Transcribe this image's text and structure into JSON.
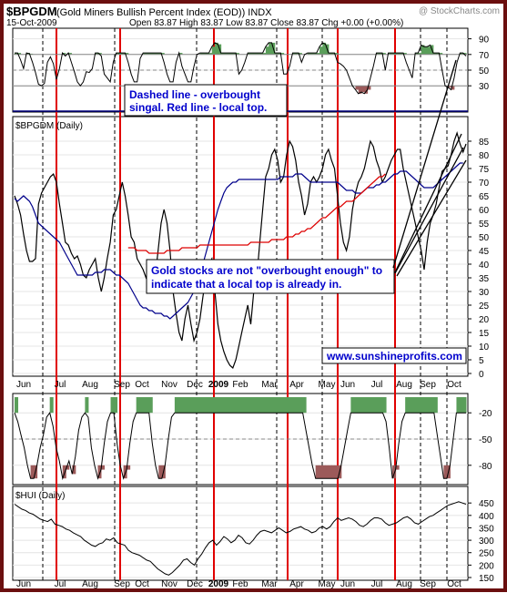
{
  "header": {
    "symbol": "$BPGDM",
    "name": "(Gold Miners Bullish Percent Index (EOD)) INDX",
    "copyright": "@ StockCharts.com",
    "date": "15-Oct-2009",
    "quote": "Open 83.87  High 83.87  Low 83.87  Close 83.87  Chg +0.00 (+0.00%)"
  },
  "annotations": {
    "dashed_line_1": "Dashed line - overbought",
    "dashed_line_2": "singal. Red line - local top.",
    "overbought_1": "Gold stocks are not \"overbought enough\" to",
    "overbought_2": "indicate that a local top is already in.",
    "website": "www.sunshineprofits.com"
  },
  "chart_data": [
    {
      "type": "line",
      "panel": "top-indicator",
      "ylim": [
        0,
        100
      ],
      "y_ticks": [
        "90",
        "70",
        "50",
        "30"
      ],
      "threshold_line": 70,
      "dashed_line": 50,
      "base_line": 30,
      "values": [
        72,
        72,
        63,
        52,
        72,
        71,
        60,
        47,
        32,
        30,
        33,
        60,
        67,
        58,
        38,
        52,
        72,
        68,
        72,
        60,
        48,
        35,
        30,
        35,
        48,
        47,
        52,
        72,
        72,
        68,
        45,
        40,
        35,
        60,
        72,
        72,
        72,
        72,
        60,
        45,
        35,
        35,
        65,
        72,
        72,
        72,
        72,
        72,
        72,
        72,
        60,
        45,
        35,
        35,
        60,
        72,
        55,
        45,
        35,
        35,
        55,
        70,
        72,
        72,
        72,
        72,
        80,
        85,
        83,
        72,
        72,
        72,
        72,
        72,
        72,
        45,
        50,
        60,
        72,
        72,
        72,
        72,
        72,
        72,
        80,
        85,
        85,
        72,
        72,
        72,
        45,
        45,
        55,
        72,
        72,
        72,
        60,
        70,
        72,
        72,
        72,
        72,
        80,
        85,
        83,
        72,
        72,
        72,
        60,
        58,
        55,
        50,
        40,
        30,
        25,
        20,
        22,
        20,
        25,
        40,
        55,
        72,
        72,
        72,
        50,
        72,
        72,
        72,
        72,
        72,
        72,
        60,
        50,
        40,
        72,
        72,
        82,
        80,
        80,
        82,
        72,
        72,
        72,
        50,
        30,
        28,
        25,
        40,
        60,
        72,
        72,
        68
      ]
    },
    {
      "type": "line",
      "panel": "main",
      "title": "$BPGDM (Daily)",
      "ylim": [
        0,
        90
      ],
      "y_ticks": [
        "85",
        "80",
        "75",
        "70",
        "65",
        "60",
        "55",
        "50",
        "45",
        "40",
        "35",
        "30",
        "25",
        "20",
        "15",
        "10",
        "5",
        "0"
      ],
      "x_tick_labels": [
        "Jun",
        "Jul",
        "Aug",
        "Sep",
        "Oct",
        "Nov",
        "Dec",
        "2009",
        "Feb",
        "Mar",
        "Apr",
        "May",
        "Jun",
        "Jul",
        "Aug",
        "Sep",
        "Oct"
      ],
      "series": [
        {
          "values": [
            65,
            62,
            58,
            51,
            45,
            41,
            41,
            42,
            62,
            66,
            68,
            70,
            72,
            73,
            70,
            62,
            55,
            48,
            47,
            44,
            42,
            43,
            40,
            36,
            35,
            38,
            40,
            42,
            35,
            30,
            35,
            42,
            48,
            58,
            60,
            65,
            70,
            65,
            58,
            50,
            48,
            42,
            40,
            38,
            35,
            32,
            30,
            35,
            45,
            55,
            60,
            55,
            45,
            30,
            22,
            15,
            12,
            20,
            25,
            18,
            12,
            15,
            20,
            28,
            35,
            40,
            42,
            30,
            18,
            12,
            8,
            5,
            3,
            2,
            5,
            10,
            15,
            20,
            25,
            18,
            30,
            35,
            48,
            60,
            72,
            75,
            80,
            82,
            78,
            70,
            72,
            80,
            85,
            83,
            78,
            70,
            65,
            58,
            62,
            70,
            72,
            70,
            72,
            75,
            80,
            82,
            78,
            75,
            65,
            55,
            48,
            45,
            50,
            60,
            66,
            70,
            72,
            75,
            80,
            85,
            83,
            78,
            75,
            70,
            72,
            75,
            78,
            80,
            82,
            82,
            75,
            70,
            65,
            60,
            55,
            50,
            45,
            38,
            48,
            55,
            58,
            62,
            68,
            74,
            75,
            76,
            80,
            85,
            88,
            84,
            81,
            84
          ]
        },
        {
          "values": [
            64,
            63,
            64,
            65,
            64,
            63,
            61,
            58,
            55,
            54,
            53,
            52,
            51,
            50,
            49,
            48,
            46,
            44,
            42,
            40,
            38,
            36,
            36,
            36,
            36,
            36,
            36,
            37,
            37,
            37,
            38,
            38,
            38,
            37,
            36,
            36,
            35,
            34,
            33,
            31,
            29,
            27,
            25,
            24,
            24,
            23,
            23,
            22,
            22,
            22,
            21,
            21,
            20,
            21,
            22,
            23,
            24,
            25,
            26,
            28,
            30,
            33,
            36,
            40,
            44,
            48,
            52,
            56,
            60,
            63,
            66,
            68,
            69,
            70,
            70,
            71,
            71,
            71,
            71,
            71,
            71,
            71,
            71,
            71,
            71,
            71,
            71,
            71,
            71,
            72,
            72,
            72,
            72,
            72,
            73,
            73,
            73,
            72,
            71,
            70,
            70,
            70,
            70,
            70,
            70,
            70,
            70,
            70,
            70,
            69,
            68,
            67,
            67,
            67,
            66,
            66,
            66,
            67,
            68,
            68,
            68,
            69,
            69,
            70,
            70,
            71,
            72,
            73,
            73,
            74,
            74,
            74,
            73,
            72,
            71,
            70,
            69,
            68,
            68,
            68,
            68,
            69,
            70,
            71,
            72,
            73,
            74,
            75,
            76,
            77,
            77
          ]
        },
        {
          "values": [
            46,
            46,
            46,
            45,
            45,
            45,
            45,
            44,
            44,
            44,
            44,
            44,
            44,
            45,
            45,
            45,
            45,
            45,
            46,
            46,
            46,
            46,
            46,
            46,
            47,
            47,
            47,
            47,
            47,
            47,
            47,
            47,
            47,
            47,
            47,
            47,
            47,
            47,
            47,
            47,
            47,
            48,
            48,
            48,
            48,
            48,
            48,
            48,
            49,
            49,
            49,
            49,
            49,
            50,
            50,
            50,
            51,
            51,
            52,
            52,
            53,
            53,
            54,
            55,
            56,
            57,
            57,
            58,
            59,
            60,
            61,
            61,
            62,
            63,
            63,
            63,
            64,
            65,
            66,
            67,
            68,
            69,
            70,
            71,
            72,
            72,
            73
          ]
        }
      ]
    },
    {
      "type": "line",
      "panel": "lower-indicator",
      "ylim": [
        -100,
        0
      ],
      "y_ticks": [
        "-20",
        "-50",
        "-80"
      ],
      "values": [
        -20,
        -30,
        -45,
        -60,
        -80,
        -95,
        -95,
        -80,
        -60,
        -45,
        -25,
        -20,
        -35,
        -60,
        -75,
        -95,
        -85,
        -75,
        -90,
        -70,
        -40,
        -25,
        -20,
        -25,
        -60,
        -80,
        -95,
        -85,
        -55,
        -30,
        -20,
        -20,
        -55,
        -80,
        -95,
        -85,
        -55,
        -30,
        -20,
        -20,
        -20,
        -20,
        -20,
        -55,
        -80,
        -95,
        -95,
        -80,
        -50,
        -25,
        -20,
        -20,
        -20,
        -20,
        -20,
        -20,
        -20,
        -20,
        -20,
        -20,
        -20,
        -20,
        -20,
        -20,
        -20,
        -20,
        -20,
        -20,
        -20,
        -20,
        -20,
        -20,
        -20,
        -20,
        -20,
        -20,
        -20,
        -20,
        -20,
        -20,
        -20,
        -20,
        -20,
        -20,
        -20,
        -20,
        -20,
        -20,
        -20,
        -20,
        -20,
        -40,
        -60,
        -80,
        -95,
        -95,
        -95,
        -95,
        -95,
        -95,
        -95,
        -95,
        -80,
        -60,
        -40,
        -20,
        -20,
        -20,
        -20,
        -20,
        -20,
        -20,
        -20,
        -20,
        -20,
        -20,
        -30,
        -60,
        -95,
        -85,
        -55,
        -30,
        -20,
        -20,
        -20,
        -20,
        -20,
        -20,
        -20,
        -20,
        -20,
        -20,
        -45,
        -70,
        -95,
        -95,
        -80,
        -50,
        -20,
        -20,
        -20,
        -20
      ]
    },
    {
      "type": "line",
      "panel": "hui",
      "title": "$HUI (Daily)",
      "ylim": [
        150,
        480
      ],
      "y_ticks": [
        "450",
        "400",
        "350",
        "300",
        "250",
        "200",
        "150"
      ],
      "x_tick_labels": [
        "Jun",
        "Jul",
        "Aug",
        "Sep",
        "Oct",
        "Nov",
        "Dec",
        "2009",
        "Feb",
        "Mar",
        "Apr",
        "May",
        "Jun",
        "Jul",
        "Aug",
        "Sep",
        "Oct"
      ],
      "values": [
        445,
        435,
        425,
        420,
        410,
        405,
        395,
        385,
        380,
        375,
        385,
        365,
        360,
        355,
        345,
        340,
        330,
        322,
        315,
        300,
        290,
        280,
        275,
        285,
        290,
        305,
        300,
        310,
        290,
        285,
        280,
        260,
        250,
        245,
        240,
        230,
        220,
        215,
        200,
        185,
        175,
        165,
        160,
        170,
        185,
        200,
        220,
        225,
        210,
        200,
        225,
        245,
        270,
        290,
        300,
        280,
        295,
        315,
        305,
        290,
        300,
        320,
        310,
        290,
        285,
        300,
        320,
        335,
        340,
        335,
        330,
        340,
        350,
        340,
        330,
        335,
        345,
        350,
        355,
        345,
        340,
        330,
        335,
        350,
        355,
        345,
        355,
        375,
        390,
        380,
        385,
        390,
        385,
        375,
        360,
        355,
        365,
        380,
        390,
        390,
        385,
        370,
        360,
        365,
        370,
        380,
        390,
        395,
        385,
        370,
        365,
        375,
        385,
        395,
        400,
        410,
        420,
        430,
        440,
        445,
        450,
        455,
        450,
        445
      ]
    }
  ]
}
